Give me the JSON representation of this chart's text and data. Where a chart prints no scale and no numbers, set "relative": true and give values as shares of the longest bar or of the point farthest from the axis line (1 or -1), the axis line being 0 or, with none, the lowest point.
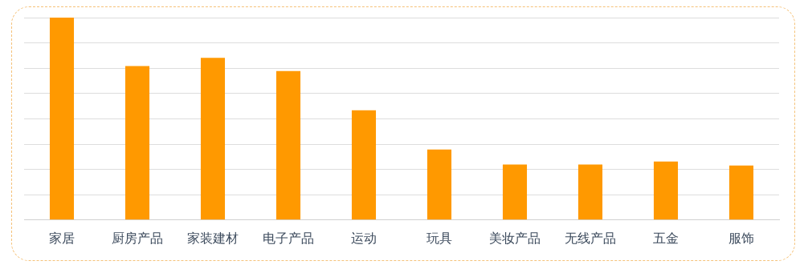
{
  "chart_data": {
    "type": "bar",
    "relative": true,
    "grid": "y",
    "categories": [
      "家居",
      "厨房产品",
      "家装建材",
      "电子产品",
      "运动",
      "玩具",
      "美妆产品",
      "无线产品",
      "五金",
      "服饰"
    ],
    "values": [
      1,
      0.761,
      0.801,
      0.736,
      0.542,
      0.348,
      0.274,
      0.274,
      0.289,
      0.269
    ],
    "color": "#ff9900"
  }
}
